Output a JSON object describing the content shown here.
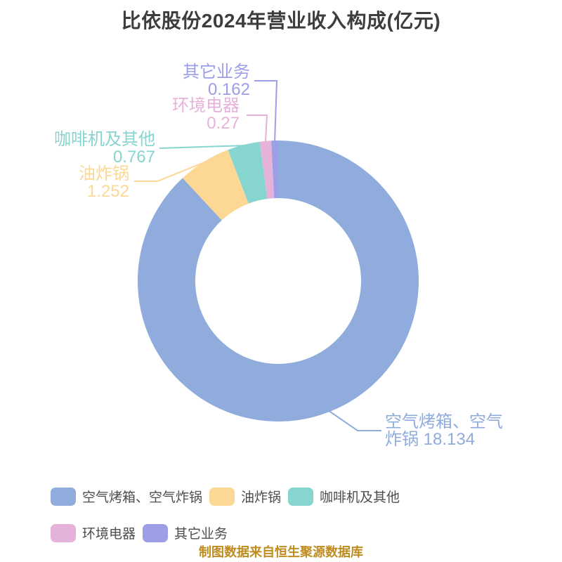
{
  "title": "比依股份2024年营业收入构成(亿元)",
  "caption": "制图数据来自恒生聚源数据库",
  "colors": {
    "background": "#FFFFFF",
    "title_text": "#3D3D3D",
    "legend_text": "#4D4D4D",
    "caption_text": "#BF8C20"
  },
  "chart_data": {
    "type": "pie",
    "subtype": "donut",
    "title": "比依股份2024年营业收入构成(亿元)",
    "unit": "亿元",
    "total": 20.585,
    "start_angle": "top",
    "direction": "clockwise",
    "legend_position": "bottom",
    "inner_radius_ratio": 0.59,
    "slices": [
      {
        "label": "空气烤箱、空气炸锅",
        "value": 18.134,
        "color": "#8FACDC",
        "label_lines": [
          "空气烤箱、空气",
          "炸锅 18.134"
        ]
      },
      {
        "label": "油炸锅",
        "value": 1.252,
        "color": "#FCD894",
        "label_lines": [
          "油炸锅",
          "1.252"
        ]
      },
      {
        "label": "咖啡机及其他",
        "value": 0.767,
        "color": "#87D5CF",
        "label_lines": [
          "咖啡机及其他",
          "0.767"
        ]
      },
      {
        "label": "环境电器",
        "value": 0.27,
        "color": "#E5B3D9",
        "label_lines": [
          "环境电器",
          "0.27"
        ]
      },
      {
        "label": "其它业务",
        "value": 0.162,
        "color": "#9C9EE8",
        "label_lines": [
          "其它业务",
          "0.162"
        ]
      }
    ]
  }
}
